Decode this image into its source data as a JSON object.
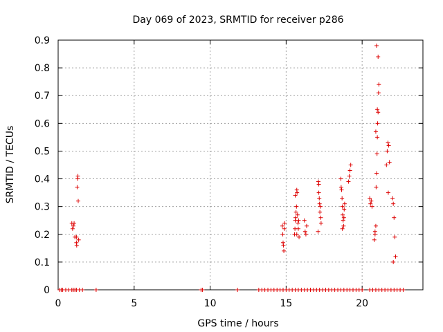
{
  "chart_data": {
    "type": "scatter",
    "title": "Day 069 of 2023, SRMTID for receiver p286",
    "xlabel": "GPS time / hours",
    "ylabel": "SRMTID / TECUs",
    "xlim": [
      0,
      24
    ],
    "ylim": [
      0,
      0.9
    ],
    "xticks": [
      0,
      5,
      10,
      15,
      20
    ],
    "yticks": [
      0,
      0.1,
      0.2,
      0.3,
      0.4,
      0.5,
      0.6,
      0.7,
      0.8,
      0.9
    ],
    "grid": true,
    "marker": "+",
    "color": "#dd0000",
    "series": [
      {
        "name": "SRMTID",
        "x": [
          0.9,
          0.95,
          1.0,
          1.05,
          1.1,
          1.2,
          1.22,
          1.25,
          1.28,
          1.3,
          1.32,
          1.35,
          1.2,
          14.75,
          14.78,
          14.8,
          14.82,
          14.85,
          14.88,
          14.9,
          15.55,
          15.58,
          15.6,
          15.62,
          15.65,
          15.68,
          15.7,
          15.72,
          15.75,
          15.78,
          15.8,
          15.82,
          15.85,
          15.6,
          15.7,
          16.2,
          16.25,
          16.3,
          16.35,
          17.1,
          17.12,
          17.15,
          17.18,
          17.2,
          17.22,
          17.25,
          17.28,
          17.3,
          17.15,
          18.6,
          18.62,
          18.65,
          18.68,
          18.7,
          18.72,
          18.75,
          18.78,
          18.8,
          18.82,
          18.85,
          18.7,
          19.1,
          19.15,
          19.2,
          19.25,
          20.5,
          20.55,
          20.6,
          20.65,
          20.8,
          20.85,
          20.9,
          20.92,
          20.95,
          20.98,
          21.0,
          21.02,
          21.05,
          21.08,
          21.1,
          20.9,
          21.0,
          20.85,
          20.95,
          21.05,
          21.6,
          21.65,
          21.7,
          21.75,
          21.8,
          21.72,
          22.0,
          22.05,
          22.1,
          22.15,
          22.2,
          22.05,
          0.1,
          0.2,
          0.3,
          0.5,
          0.7,
          0.9,
          1.0,
          1.1,
          1.2,
          1.4,
          1.6,
          2.5,
          9.4,
          9.5,
          11.8,
          13.2,
          13.4,
          13.6,
          13.8,
          14.0,
          14.2,
          14.4,
          14.6,
          14.8,
          15.0,
          15.2,
          15.4,
          15.6,
          15.8,
          16.0,
          16.2,
          16.4,
          16.6,
          16.8,
          17.0,
          17.2,
          17.4,
          17.6,
          17.8,
          18.0,
          18.2,
          18.4,
          18.6,
          18.8,
          19.0,
          19.2,
          19.4,
          19.6,
          19.8,
          20.0,
          20.5,
          20.7,
          20.9,
          21.1,
          21.3,
          21.5,
          21.7,
          21.9,
          22.1,
          22.3,
          22.5,
          22.7
        ],
        "y": [
          0.24,
          0.22,
          0.23,
          0.24,
          0.19,
          0.19,
          0.16,
          0.37,
          0.4,
          0.41,
          0.32,
          0.18,
          0.17,
          0.23,
          0.2,
          0.17,
          0.16,
          0.14,
          0.22,
          0.24,
          0.2,
          0.22,
          0.25,
          0.26,
          0.28,
          0.3,
          0.36,
          0.35,
          0.27,
          0.24,
          0.22,
          0.25,
          0.19,
          0.34,
          0.2,
          0.25,
          0.21,
          0.2,
          0.23,
          0.21,
          0.39,
          0.38,
          0.33,
          0.31,
          0.28,
          0.3,
          0.26,
          0.24,
          0.35,
          0.4,
          0.37,
          0.36,
          0.33,
          0.3,
          0.27,
          0.25,
          0.23,
          0.26,
          0.29,
          0.31,
          0.22,
          0.39,
          0.41,
          0.43,
          0.45,
          0.33,
          0.31,
          0.32,
          0.3,
          0.18,
          0.2,
          0.23,
          0.37,
          0.42,
          0.49,
          0.55,
          0.6,
          0.64,
          0.71,
          0.74,
          0.57,
          0.65,
          0.21,
          0.88,
          0.84,
          0.45,
          0.5,
          0.53,
          0.52,
          0.46,
          0.35,
          0.33,
          0.31,
          0.26,
          0.19,
          0.12,
          0.1,
          0,
          0,
          0,
          0,
          0,
          0,
          0,
          0,
          0,
          0,
          0,
          0,
          0,
          0,
          0,
          0,
          0,
          0,
          0,
          0,
          0,
          0,
          0,
          0,
          0,
          0,
          0,
          0,
          0,
          0,
          0,
          0,
          0,
          0,
          0,
          0,
          0,
          0,
          0,
          0,
          0,
          0,
          0,
          0,
          0,
          0,
          0,
          0,
          0,
          0,
          0,
          0,
          0,
          0,
          0,
          0,
          0,
          0,
          0,
          0,
          0,
          0
        ]
      }
    ]
  }
}
